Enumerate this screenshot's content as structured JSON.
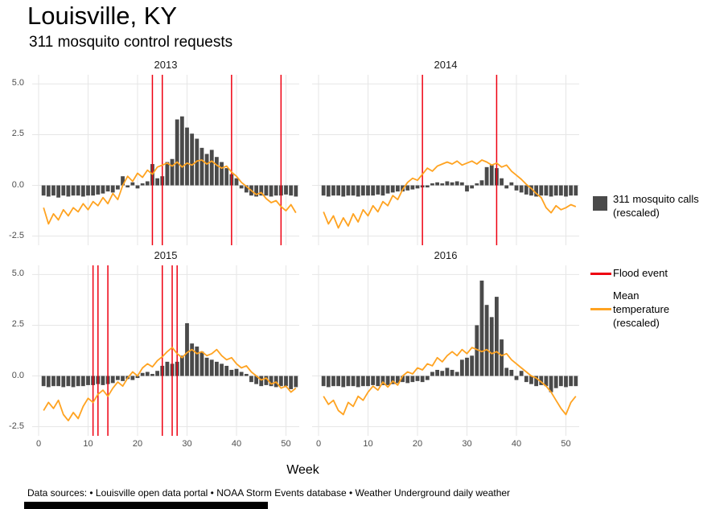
{
  "header": {
    "title": "Louisville, KY",
    "subtitle": "311 mosquito control requests"
  },
  "axis": {
    "xlabel": "Week",
    "y_tick_labels": [
      "5.0",
      "2.5",
      "0.0",
      "-2.5"
    ],
    "y_tick_values": [
      5.0,
      2.5,
      0.0,
      -2.5
    ],
    "x_tick_labels": [
      "0",
      "10",
      "20",
      "30",
      "40",
      "50"
    ],
    "x_tick_values": [
      0,
      10,
      20,
      30,
      40,
      50
    ]
  },
  "legend": {
    "calls_label": "311 mosquito calls (rescaled)",
    "flood_label": "Flood event",
    "temp_label": "Mean temperature (rescaled)"
  },
  "footer": "Data sources: • Louisville open data portal • NOAA Storm Events database • Weather Underground daily weather",
  "colors": {
    "bar": "#4a4a4a",
    "flood": "#ee0011",
    "temp": "#ffa321",
    "grid": "#e6e6e6",
    "tick_text": "#4d4d4d"
  },
  "chart_data": {
    "type": "bar",
    "title": "Louisville, KY",
    "subtitle": "311 mosquito control requests",
    "xlabel": "Week",
    "ylabel": "",
    "xlim": [
      0,
      52
    ],
    "ylim": [
      -2.5,
      5.0
    ],
    "grid": true,
    "legend_position": "right",
    "x": [
      1,
      2,
      3,
      4,
      5,
      6,
      7,
      8,
      9,
      10,
      11,
      12,
      13,
      14,
      15,
      16,
      17,
      18,
      19,
      20,
      21,
      22,
      23,
      24,
      25,
      26,
      27,
      28,
      29,
      30,
      31,
      32,
      33,
      34,
      35,
      36,
      37,
      38,
      39,
      40,
      41,
      42,
      43,
      44,
      45,
      46,
      47,
      48,
      49,
      50,
      51,
      52
    ],
    "series_info": {
      "bars": "311 mosquito calls (rescaled)",
      "temperature": "Mean temperature (rescaled)",
      "flood_weeks": "Flood event (vertical red lines, week numbers)"
    },
    "panels": [
      {
        "year": "2013",
        "bars": [
          -0.5,
          -0.55,
          -0.5,
          -0.6,
          -0.5,
          -0.55,
          -0.5,
          -0.5,
          -0.55,
          -0.5,
          -0.5,
          -0.45,
          -0.4,
          -0.3,
          -0.35,
          -0.2,
          0.45,
          -0.1,
          0.15,
          -0.15,
          0.1,
          0.2,
          1.05,
          0.35,
          0.45,
          1.15,
          1.3,
          3.25,
          3.4,
          2.85,
          2.55,
          2.3,
          1.85,
          1.55,
          1.75,
          1.4,
          1.15,
          0.85,
          0.55,
          0.35,
          -0.15,
          -0.35,
          -0.5,
          -0.55,
          -0.5,
          -0.5,
          -0.55,
          -0.5,
          -0.5,
          -0.45,
          -0.5,
          -0.55
        ],
        "temperature": [
          -1.1,
          -1.9,
          -1.4,
          -1.7,
          -1.2,
          -1.5,
          -1.1,
          -1.3,
          -0.9,
          -1.2,
          -0.8,
          -1.0,
          -0.6,
          -0.9,
          -0.4,
          -0.7,
          0.0,
          0.45,
          0.2,
          0.6,
          0.4,
          0.75,
          0.55,
          0.9,
          1.0,
          1.1,
          0.95,
          1.15,
          0.9,
          1.1,
          1.0,
          1.2,
          1.25,
          1.05,
          1.2,
          1.0,
          0.85,
          0.95,
          0.65,
          0.45,
          0.15,
          -0.05,
          -0.25,
          -0.45,
          -0.35,
          -0.65,
          -0.85,
          -0.75,
          -1.05,
          -1.25,
          -0.95,
          -1.35
        ],
        "flood_weeks": [
          23,
          25,
          39,
          49
        ]
      },
      {
        "year": "2014",
        "bars": [
          -0.5,
          -0.55,
          -0.5,
          -0.5,
          -0.55,
          -0.5,
          -0.5,
          -0.55,
          -0.5,
          -0.5,
          -0.5,
          -0.45,
          -0.5,
          -0.4,
          -0.35,
          -0.3,
          -0.3,
          -0.25,
          -0.2,
          -0.15,
          -0.1,
          -0.1,
          0.1,
          0.15,
          0.1,
          0.2,
          0.15,
          0.2,
          0.15,
          -0.3,
          -0.15,
          0.1,
          0.25,
          0.9,
          1.0,
          0.85,
          0.35,
          -0.15,
          0.15,
          -0.25,
          -0.35,
          -0.45,
          -0.5,
          -0.55,
          -0.5,
          -0.5,
          -0.55,
          -0.5,
          -0.5,
          -0.55,
          -0.5,
          -0.5
        ],
        "temperature": [
          -1.3,
          -1.9,
          -1.5,
          -2.1,
          -1.6,
          -2.0,
          -1.4,
          -1.8,
          -1.2,
          -1.5,
          -1.0,
          -1.3,
          -0.8,
          -1.0,
          -0.5,
          -0.7,
          -0.2,
          0.15,
          0.35,
          0.25,
          0.55,
          0.85,
          0.7,
          0.95,
          1.05,
          1.15,
          1.05,
          1.2,
          1.0,
          1.1,
          1.2,
          1.05,
          1.25,
          1.15,
          1.0,
          1.1,
          0.9,
          1.0,
          0.7,
          0.5,
          0.3,
          0.05,
          -0.15,
          -0.4,
          -0.6,
          -1.1,
          -1.35,
          -1.0,
          -1.2,
          -1.1,
          -0.95,
          -1.05
        ],
        "flood_weeks": [
          21,
          36
        ]
      },
      {
        "year": "2015",
        "bars": [
          -0.5,
          -0.55,
          -0.5,
          -0.5,
          -0.55,
          -0.5,
          -0.55,
          -0.5,
          -0.5,
          -0.45,
          -0.45,
          -0.4,
          -0.45,
          -0.4,
          -0.35,
          -0.2,
          -0.25,
          -0.15,
          -0.2,
          -0.1,
          0.15,
          0.2,
          0.1,
          0.25,
          0.5,
          0.7,
          0.6,
          0.7,
          1.0,
          2.6,
          1.6,
          1.45,
          1.2,
          0.9,
          0.8,
          0.7,
          0.6,
          0.5,
          0.3,
          0.35,
          0.2,
          0.1,
          -0.3,
          -0.4,
          -0.5,
          -0.45,
          -0.5,
          -0.55,
          -0.5,
          -0.5,
          -0.65,
          -0.55
        ],
        "temperature": [
          -1.7,
          -1.3,
          -1.6,
          -1.2,
          -1.9,
          -2.2,
          -1.8,
          -2.1,
          -1.5,
          -1.1,
          -1.3,
          -0.9,
          -0.7,
          -1.0,
          -0.6,
          -0.3,
          -0.5,
          -0.1,
          0.2,
          0.0,
          0.4,
          0.6,
          0.45,
          0.75,
          0.95,
          1.2,
          1.4,
          1.1,
          0.9,
          1.15,
          1.3,
          1.1,
          1.2,
          1.0,
          1.1,
          1.3,
          1.0,
          0.8,
          0.9,
          0.6,
          0.4,
          0.5,
          0.2,
          0.0,
          -0.2,
          -0.1,
          -0.4,
          -0.3,
          -0.6,
          -0.5,
          -0.8,
          -0.6
        ],
        "flood_weeks": [
          11,
          12,
          14,
          25,
          27,
          28
        ]
      },
      {
        "year": "2016",
        "bars": [
          -0.5,
          -0.55,
          -0.5,
          -0.5,
          -0.55,
          -0.5,
          -0.5,
          -0.55,
          -0.5,
          -0.5,
          -0.45,
          -0.5,
          -0.45,
          -0.45,
          -0.4,
          -0.35,
          -0.3,
          -0.35,
          -0.3,
          -0.25,
          -0.3,
          -0.2,
          0.2,
          0.3,
          0.25,
          0.4,
          0.3,
          0.2,
          0.8,
          0.9,
          1.0,
          2.5,
          4.7,
          3.5,
          2.9,
          3.9,
          1.8,
          0.4,
          0.3,
          -0.2,
          0.25,
          -0.3,
          -0.4,
          -0.5,
          -0.45,
          -0.5,
          -0.8,
          -0.6,
          -0.5,
          -0.55,
          -0.5,
          -0.5
        ],
        "temperature": [
          -1.0,
          -1.4,
          -1.2,
          -1.7,
          -1.9,
          -1.3,
          -1.5,
          -1.0,
          -1.2,
          -0.8,
          -0.5,
          -0.7,
          -0.3,
          -0.55,
          -0.25,
          -0.45,
          0.0,
          0.2,
          0.1,
          0.4,
          0.3,
          0.6,
          0.5,
          0.9,
          0.7,
          1.0,
          1.2,
          1.0,
          1.3,
          1.1,
          1.4,
          1.3,
          1.2,
          1.3,
          1.1,
          1.2,
          1.0,
          1.1,
          0.8,
          0.6,
          0.4,
          0.2,
          0.0,
          -0.1,
          -0.3,
          -0.5,
          -0.8,
          -1.2,
          -1.6,
          -1.9,
          -1.3,
          -1.0
        ],
        "flood_weeks": []
      }
    ]
  }
}
